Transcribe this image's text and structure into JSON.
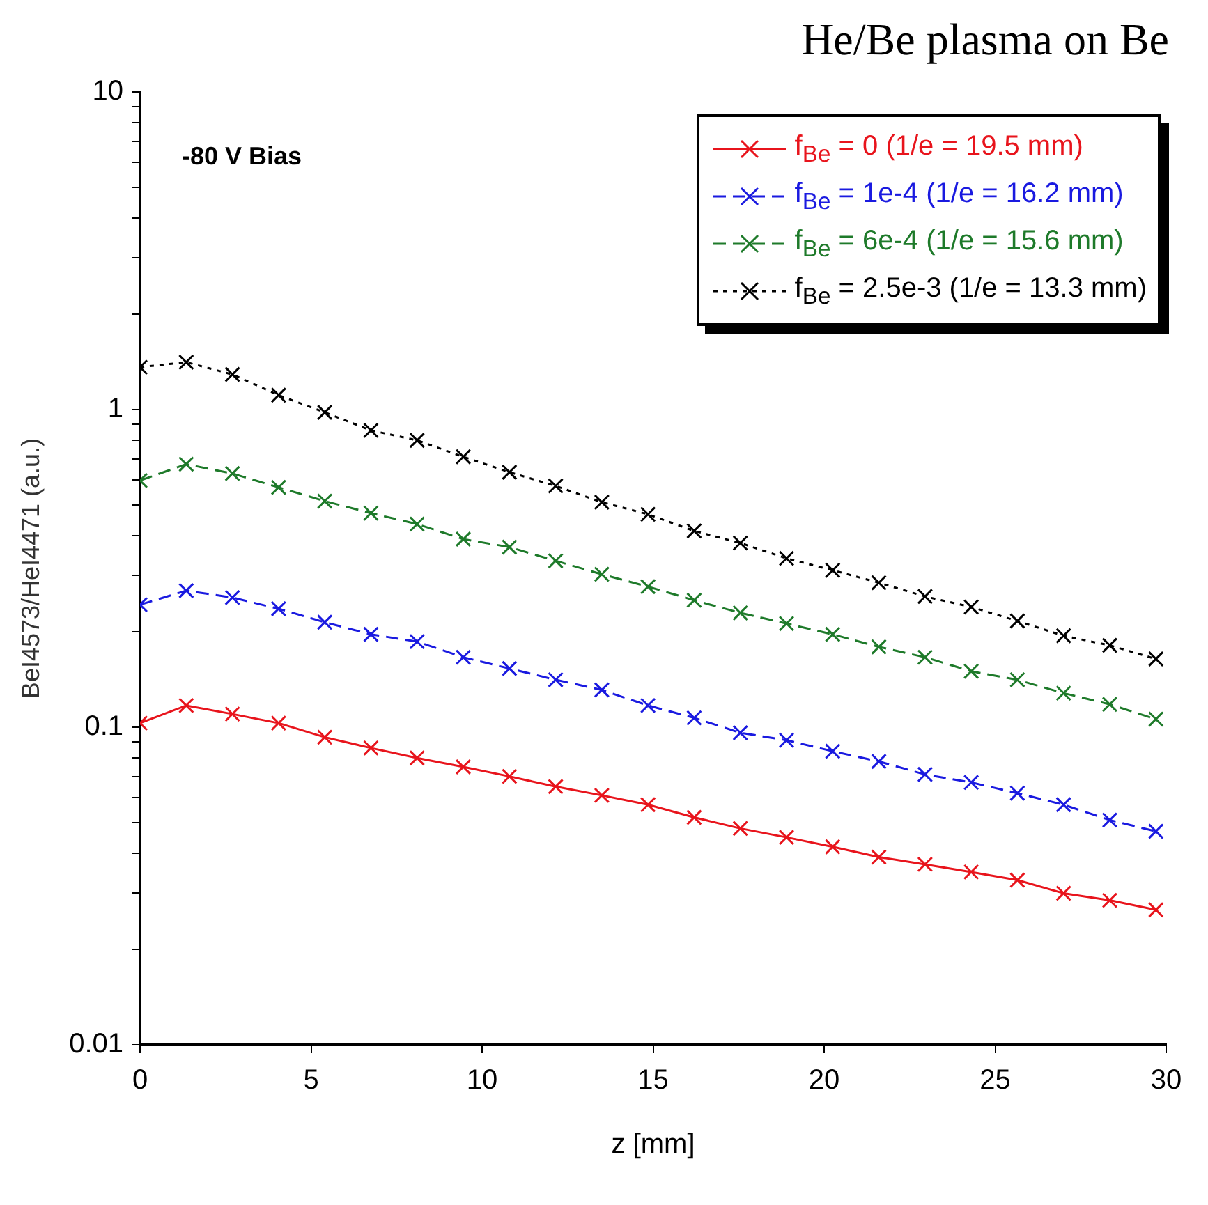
{
  "chart_data": {
    "type": "line",
    "title": "He/Be plasma on Be",
    "xlabel": "z [mm]",
    "ylabel": "BeI4573/HeI4471 (a.u.)",
    "annotations": [
      "-80 V Bias"
    ],
    "x": [
      0,
      1.35,
      2.7,
      4.05,
      5.4,
      6.75,
      8.1,
      9.45,
      10.8,
      12.15,
      13.5,
      14.85,
      16.2,
      17.55,
      18.9,
      20.25,
      21.6,
      22.95,
      24.3,
      25.65,
      27,
      28.35,
      29.7
    ],
    "series": [
      {
        "name": "f$_{Be}$ = 0 (1/e = 19.5 mm)",
        "color": "#e8141c",
        "line_style": "solid",
        "values": [
          0.103,
          0.117,
          0.11,
          0.103,
          0.093,
          0.086,
          0.08,
          0.075,
          0.07,
          0.065,
          0.061,
          0.057,
          0.052,
          0.048,
          0.045,
          0.042,
          0.039,
          0.037,
          0.035,
          0.033,
          0.03,
          0.0285,
          0.0266
        ]
      },
      {
        "name": "f$_{Be}$ = 1e-4 (1/e = 16.2 mm)",
        "color": "#1a1ae0",
        "line_style": "dashed",
        "values": [
          0.243,
          0.269,
          0.256,
          0.236,
          0.214,
          0.196,
          0.186,
          0.166,
          0.153,
          0.141,
          0.131,
          0.117,
          0.107,
          0.096,
          0.091,
          0.084,
          0.078,
          0.071,
          0.067,
          0.062,
          0.057,
          0.051,
          0.047
        ]
      },
      {
        "name": "f$_{Be}$ = 6e-4 (1/e = 15.6 mm)",
        "color": "#1e7a2a",
        "line_style": "dashed",
        "values": [
          0.598,
          0.673,
          0.629,
          0.569,
          0.515,
          0.472,
          0.436,
          0.391,
          0.369,
          0.334,
          0.303,
          0.277,
          0.251,
          0.229,
          0.212,
          0.196,
          0.179,
          0.166,
          0.15,
          0.141,
          0.128,
          0.118,
          0.106
        ]
      },
      {
        "name": "f$_{Be}$ = 2.5e-3 (1/e = 13.3 mm)",
        "color": "#000000",
        "line_style": "dotted",
        "values": [
          1.36,
          1.41,
          1.29,
          1.11,
          0.98,
          0.86,
          0.8,
          0.71,
          0.635,
          0.575,
          0.511,
          0.468,
          0.415,
          0.38,
          0.34,
          0.312,
          0.285,
          0.258,
          0.239,
          0.216,
          0.194,
          0.181,
          0.164
        ]
      }
    ],
    "xlim": [
      0,
      30
    ],
    "xticks": [
      0,
      5,
      10,
      15,
      20,
      25,
      30
    ],
    "ylim": [
      0.01,
      10
    ],
    "log": true,
    "yticks": [
      0.01,
      {
        "value": 0.02,
        "label": null
      },
      {
        "value": 0.03,
        "label": null
      },
      {
        "value": 0.04,
        "label": null
      },
      {
        "value": 0.05,
        "label": null
      },
      {
        "value": 0.06,
        "label": null
      },
      {
        "value": 0.07,
        "label": null
      },
      {
        "value": 0.08,
        "label": null
      },
      {
        "value": 0.09,
        "label": null
      },
      0.1,
      {
        "value": 0.2,
        "label": null
      },
      {
        "value": 0.3,
        "label": null
      },
      {
        "value": 0.4,
        "label": null
      },
      {
        "value": 0.5,
        "label": null
      },
      {
        "value": 0.6,
        "label": null
      },
      {
        "value": 0.7,
        "label": null
      },
      {
        "value": 0.8,
        "label": null
      },
      {
        "value": 0.9,
        "label": null
      },
      1,
      {
        "value": 2,
        "label": null
      },
      {
        "value": 3,
        "label": null
      },
      {
        "value": 4,
        "label": null
      },
      {
        "value": 5,
        "label": null
      },
      {
        "value": 6,
        "label": null
      },
      {
        "value": 7,
        "label": null
      },
      {
        "value": 8,
        "label": null
      },
      {
        "value": 9,
        "label": null
      },
      10
    ],
    "marker": "cross",
    "legend": "top right"
  }
}
